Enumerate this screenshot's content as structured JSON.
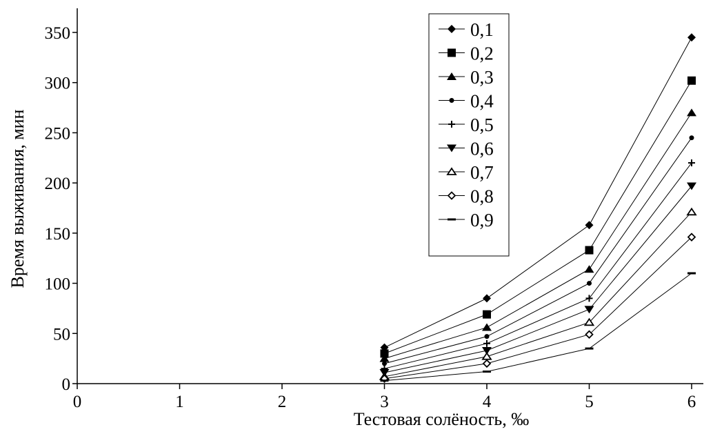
{
  "chart_data": {
    "type": "line",
    "xlabel": "Тестовая солёность, ‰",
    "ylabel": "Время выживания, мин",
    "xlim": [
      0,
      6
    ],
    "ylim": [
      0,
      350
    ],
    "x_ticks": [
      "0",
      "1",
      "2",
      "3",
      "4",
      "5",
      "6"
    ],
    "y_ticks": [
      "0",
      "50",
      "100",
      "150",
      "200",
      "250",
      "300",
      "350"
    ],
    "legend_position": "top-right",
    "grid": false,
    "x": [
      3,
      4,
      5,
      6
    ],
    "series": [
      {
        "name": "0,1",
        "marker": "diamond-filled",
        "values": [
          36,
          85,
          158,
          345
        ]
      },
      {
        "name": "0,2",
        "marker": "square-filled",
        "values": [
          30,
          69,
          133,
          302
        ]
      },
      {
        "name": "0,3",
        "marker": "triangle-up-filled",
        "values": [
          25,
          56,
          114,
          270
        ]
      },
      {
        "name": "0,4",
        "marker": "circle-small-filled",
        "values": [
          20,
          47,
          100,
          245
        ]
      },
      {
        "name": "0,5",
        "marker": "plus",
        "values": [
          15,
          40,
          85,
          220
        ]
      },
      {
        "name": "0,6",
        "marker": "triangle-down-filled",
        "values": [
          11,
          33,
          74,
          197
        ]
      },
      {
        "name": "0,7",
        "marker": "triangle-up-open",
        "values": [
          7,
          27,
          61,
          171
        ]
      },
      {
        "name": "0,8",
        "marker": "diamond-open",
        "values": [
          5,
          20,
          49,
          146
        ]
      },
      {
        "name": "0,9",
        "marker": "dash",
        "values": [
          3,
          12,
          35,
          110
        ]
      }
    ]
  }
}
